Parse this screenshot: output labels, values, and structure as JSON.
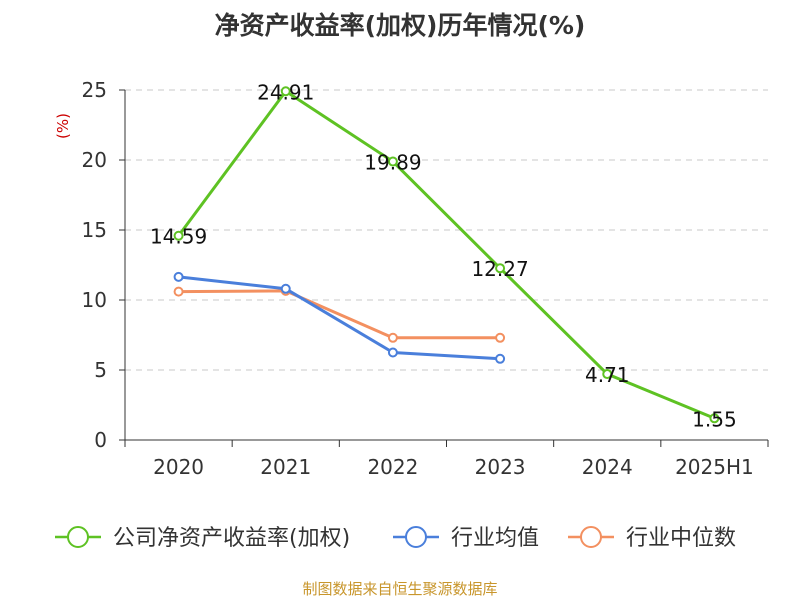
{
  "title": "净资产收益率(加权)历年情况(%)",
  "source": "制图数据来自恒生聚源数据库",
  "chart_data": {
    "type": "line",
    "title": "净资产收益率(加权)历年情况(%)",
    "ylabel": "(%)",
    "categories": [
      "2020",
      "2021",
      "2022",
      "2023",
      "2024",
      "2025H1"
    ],
    "ylim": [
      0,
      25
    ],
    "yticks": [
      0,
      5,
      10,
      15,
      20,
      25
    ],
    "grid": true,
    "legend_position": "bottom",
    "series": [
      {
        "name": "公司净资产收益率(加权)",
        "color": "#5ec223",
        "values": [
          14.59,
          24.91,
          19.89,
          12.27,
          4.71,
          1.55
        ],
        "labels": true
      },
      {
        "name": "行业均值",
        "color": "#4a7fdb",
        "values": [
          11.65,
          10.8,
          6.25,
          5.8,
          null,
          null
        ],
        "labels": false
      },
      {
        "name": "行业中位数",
        "color": "#f39060",
        "values": [
          10.6,
          10.65,
          7.3,
          7.3,
          null,
          null
        ],
        "labels": false
      }
    ]
  }
}
